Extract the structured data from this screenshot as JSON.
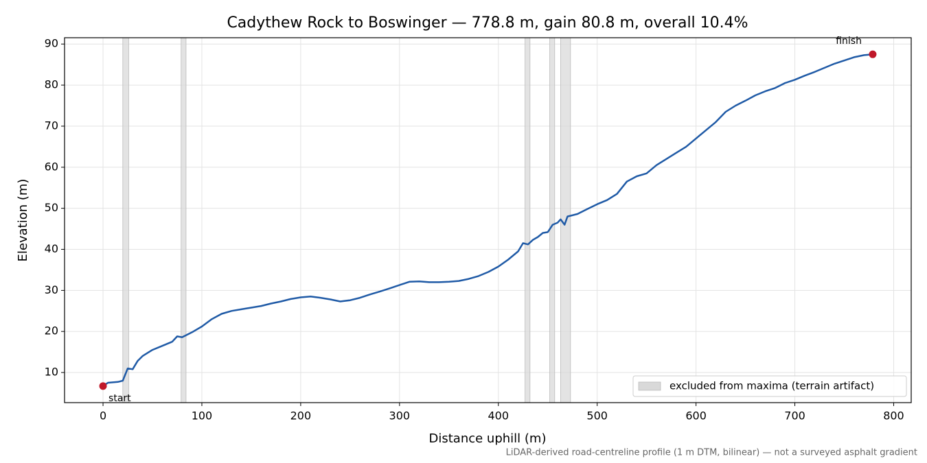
{
  "chart_data": {
    "type": "line",
    "title": "Cadythew Rock to Boswinger — 778.8 m, gain 80.8 m, overall 10.4%",
    "x_label": "Distance uphill (m)",
    "y_label": "Elevation (m)",
    "footnote": "LiDAR-derived road-centreline profile (1 m DTM, bilinear) — not a surveyed asphalt gradient",
    "x": [
      0,
      5,
      10,
      15,
      20,
      25,
      30,
      35,
      40,
      50,
      60,
      70,
      75,
      80,
      85,
      90,
      95,
      100,
      110,
      120,
      130,
      140,
      150,
      160,
      170,
      180,
      190,
      200,
      210,
      220,
      230,
      240,
      250,
      260,
      270,
      280,
      290,
      300,
      310,
      320,
      330,
      340,
      350,
      360,
      370,
      380,
      390,
      400,
      410,
      420,
      425,
      430,
      435,
      440,
      445,
      450,
      455,
      460,
      463,
      467,
      470,
      480,
      490,
      500,
      510,
      520,
      530,
      540,
      550,
      560,
      570,
      580,
      590,
      600,
      610,
      620,
      630,
      640,
      650,
      660,
      670,
      680,
      690,
      700,
      710,
      720,
      730,
      740,
      750,
      760,
      770,
      778.8
    ],
    "values": [
      6.7,
      7.5,
      7.6,
      7.7,
      8.0,
      11.0,
      10.8,
      12.8,
      14.0,
      15.5,
      16.5,
      17.5,
      18.8,
      18.6,
      19.2,
      19.8,
      20.5,
      21.2,
      23.0,
      24.3,
      25.0,
      25.4,
      25.8,
      26.2,
      26.8,
      27.3,
      27.9,
      28.3,
      28.5,
      28.2,
      27.8,
      27.3,
      27.6,
      28.2,
      29.0,
      29.7,
      30.5,
      31.3,
      32.1,
      32.2,
      32.0,
      32.0,
      32.1,
      32.3,
      32.8,
      33.5,
      34.5,
      35.8,
      37.5,
      39.5,
      41.5,
      41.2,
      42.3,
      43.0,
      44.0,
      44.2,
      46.0,
      46.5,
      47.3,
      46.0,
      48.0,
      48.6,
      49.8,
      51.0,
      52.0,
      53.5,
      56.5,
      57.8,
      58.5,
      60.5,
      62.0,
      63.5,
      65.0,
      67.0,
      69.0,
      71.0,
      73.5,
      75.0,
      76.2,
      77.5,
      78.5,
      79.3,
      80.5,
      81.3,
      82.3,
      83.2,
      84.2,
      85.2,
      86.0,
      86.8,
      87.3,
      87.5
    ],
    "color": "#1f5aa6",
    "markers": [
      {
        "label": "start",
        "x": 0,
        "y": 6.7
      },
      {
        "label": "finish",
        "x": 778.8,
        "y": 87.5
      }
    ],
    "marker_color": "#c0182a",
    "excluded": {
      "label": "excluded from maxima (terrain artifact)",
      "color": "#d9d9d9",
      "ranges": [
        [
          20,
          26
        ],
        [
          79,
          84
        ],
        [
          427,
          432
        ],
        [
          452,
          457
        ],
        [
          463,
          473
        ]
      ]
    },
    "xlim": [
      -38.94,
      817.74
    ],
    "ylim": [
      2.66,
      91.54
    ],
    "xticks": [
      0,
      100,
      200,
      300,
      400,
      500,
      600,
      700,
      800
    ],
    "yticks": [
      10,
      20,
      30,
      40,
      50,
      60,
      70,
      80,
      90
    ],
    "grid": true,
    "legend_loc": "lower right"
  }
}
